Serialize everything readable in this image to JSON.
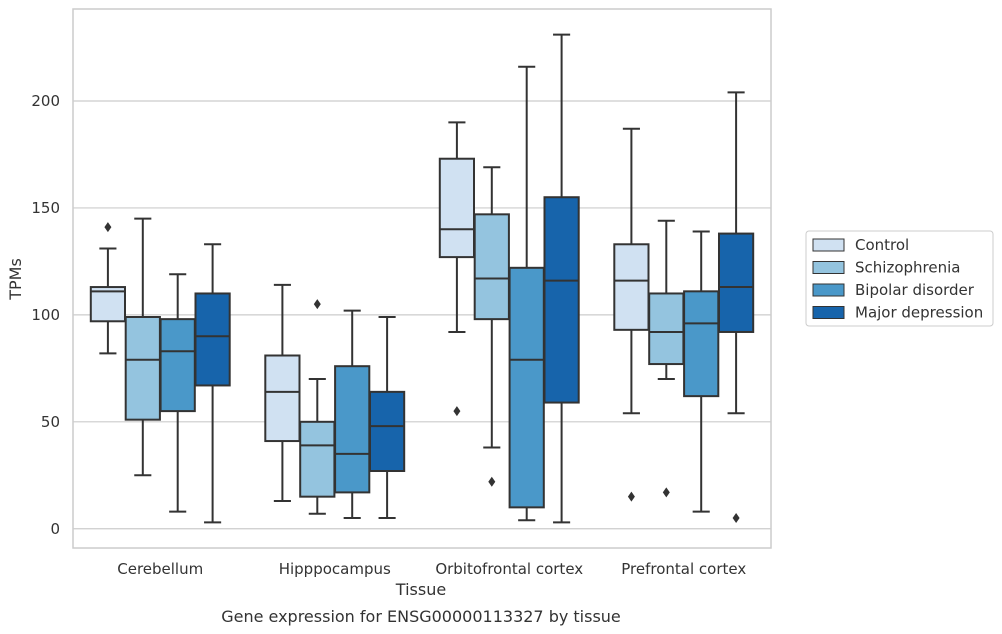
{
  "caption": "Gene expression for ENSG00000113327 by tissue",
  "colors": {
    "Control": "#d0e1f2",
    "Schizophrenia": "#94c4df",
    "Bipolar disorder": "#4a98c9",
    "Major depression": "#1764ab",
    "grid": "#cccccc",
    "frame": "#cccccc",
    "line": "#333333"
  },
  "chart_data": {
    "type": "box",
    "title": "",
    "xlabel": "Tissue",
    "ylabel": "TPMs",
    "ylim": [
      -9,
      243
    ],
    "yticks": [
      0,
      50,
      100,
      150,
      200
    ],
    "grid": "horizontal",
    "legend_position": "right",
    "categories": [
      "Cerebellum",
      "Hipppocampus",
      "Orbitofrontal cortex",
      "Prefrontal cortex"
    ],
    "series": [
      {
        "name": "Control",
        "boxes": [
          {
            "whislo": 82,
            "q1": 97,
            "med": 111,
            "q3": 113,
            "whishi": 131,
            "fliers": [
              141
            ]
          },
          {
            "whislo": 13,
            "q1": 41,
            "med": 64,
            "q3": 81,
            "whishi": 114,
            "fliers": []
          },
          {
            "whislo": 92,
            "q1": 127,
            "med": 140,
            "q3": 173,
            "whishi": 190,
            "fliers": [
              55
            ]
          },
          {
            "whislo": 54,
            "q1": 93,
            "med": 116,
            "q3": 133,
            "whishi": 187,
            "fliers": [
              15
            ]
          }
        ]
      },
      {
        "name": "Schizophrenia",
        "boxes": [
          {
            "whislo": 25,
            "q1": 51,
            "med": 79,
            "q3": 99,
            "whishi": 145,
            "fliers": []
          },
          {
            "whislo": 7,
            "q1": 15,
            "med": 39,
            "q3": 50,
            "whishi": 70,
            "fliers": [
              105
            ]
          },
          {
            "whislo": 38,
            "q1": 98,
            "med": 117,
            "q3": 147,
            "whishi": 169,
            "fliers": [
              22
            ]
          },
          {
            "whislo": 70,
            "q1": 77,
            "med": 92,
            "q3": 110,
            "whishi": 144,
            "fliers": [
              17
            ]
          }
        ]
      },
      {
        "name": "Bipolar disorder",
        "boxes": [
          {
            "whislo": 8,
            "q1": 55,
            "med": 83,
            "q3": 98,
            "whishi": 119,
            "fliers": []
          },
          {
            "whislo": 5,
            "q1": 17,
            "med": 35,
            "q3": 76,
            "whishi": 102,
            "fliers": []
          },
          {
            "whislo": 4,
            "q1": 10,
            "med": 79,
            "q3": 122,
            "whishi": 216,
            "fliers": []
          },
          {
            "whislo": 8,
            "q1": 62,
            "med": 96,
            "q3": 111,
            "whishi": 139,
            "fliers": []
          }
        ]
      },
      {
        "name": "Major depression",
        "boxes": [
          {
            "whislo": 3,
            "q1": 67,
            "med": 90,
            "q3": 110,
            "whishi": 133,
            "fliers": []
          },
          {
            "whislo": 5,
            "q1": 27,
            "med": 48,
            "q3": 64,
            "whishi": 99,
            "fliers": []
          },
          {
            "whislo": 3,
            "q1": 59,
            "med": 116,
            "q3": 155,
            "whishi": 231,
            "fliers": []
          },
          {
            "whislo": 54,
            "q1": 92,
            "med": 113,
            "q3": 138,
            "whishi": 204,
            "fliers": [
              5
            ]
          }
        ]
      }
    ]
  }
}
